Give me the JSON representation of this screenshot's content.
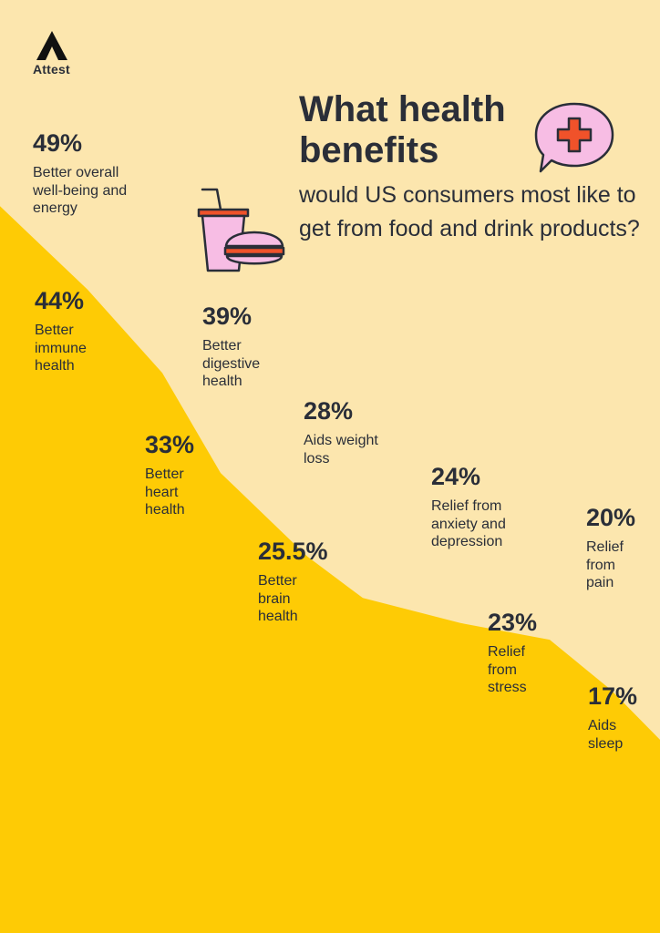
{
  "brand": {
    "name": "Attest",
    "icon": "attest-logo-icon"
  },
  "header": {
    "title": "What health benefits",
    "subtitle": "would US consumers most like to get from food and drink products?"
  },
  "colors": {
    "background": "#FCE6AE",
    "area_fill": "#FECB05",
    "text": "#2A2E38",
    "icon_pink": "#F7BDE4",
    "icon_red": "#F0522A"
  },
  "icons": [
    "drink-and-burger-icon",
    "speech-bubble-cross-icon"
  ],
  "chart_data": {
    "type": "area",
    "title": "What health benefits would US consumers most like to get from food and drink products?",
    "xlabel": "",
    "ylabel": "",
    "grid": false,
    "legend": "none",
    "categories": [
      "Better overall well-being and energy",
      "Better immune health",
      "Better digestive health",
      "Better heart health",
      "Aids weight loss",
      "Better brain health",
      "Relief from anxiety and depression",
      "Relief from stress",
      "Relief from pain",
      "Aids sleep"
    ],
    "values": [
      49,
      44,
      39,
      33,
      28,
      25.5,
      24,
      23,
      20,
      17
    ],
    "value_labels": [
      "49%",
      "44%",
      "39%",
      "33%",
      "28%",
      "25.5%",
      "24%",
      "23%",
      "20%",
      "17%"
    ],
    "label_lines": [
      [
        "Better overall",
        "well-being and",
        "energy"
      ],
      [
        "Better",
        "immune",
        "health"
      ],
      [
        "Better",
        "digestive",
        "health"
      ],
      [
        "Better",
        "heart",
        "health"
      ],
      [
        "Aids weight",
        "loss"
      ],
      [
        "Better",
        "brain",
        "health"
      ],
      [
        "Relief from",
        "anxiety and",
        "depression"
      ],
      [
        "Relief",
        "from",
        "stress"
      ],
      [
        "Relief",
        "from",
        "pain"
      ],
      [
        "Aids",
        "sleep"
      ]
    ]
  }
}
